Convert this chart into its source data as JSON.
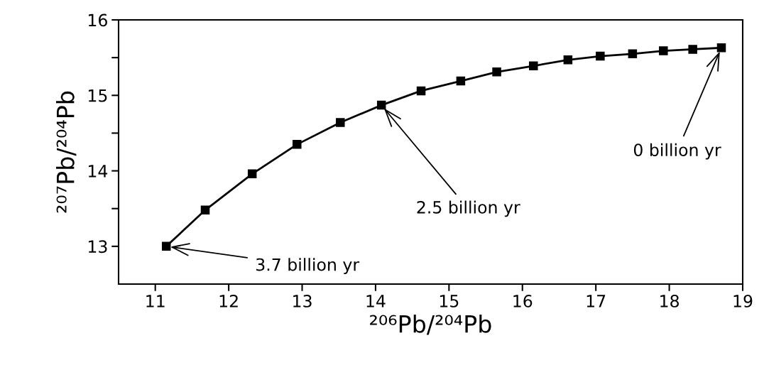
{
  "chart_data": {
    "type": "line",
    "xlabel": "²⁰⁶Pb/²⁰⁴Pb",
    "ylabel": "²⁰⁷Pb/²⁰⁴Pb",
    "x": [
      11.15,
      11.68,
      12.32,
      12.93,
      13.52,
      14.08,
      14.62,
      15.16,
      15.65,
      16.15,
      16.62,
      17.06,
      17.5,
      17.92,
      18.32,
      18.71
    ],
    "series": [
      {
        "color": "#000000",
        "values": [
          13.0,
          13.48,
          13.96,
          14.35,
          14.64,
          14.87,
          15.06,
          15.19,
          15.31,
          15.39,
          15.47,
          15.52,
          15.55,
          15.59,
          15.61,
          15.63
        ]
      }
    ],
    "xlim": [
      10.5,
      19
    ],
    "ylim": [
      12.5,
      16
    ],
    "xticks": [
      11,
      12,
      13,
      14,
      15,
      16,
      17,
      18,
      19
    ],
    "yticks": [
      13,
      {
        "value": 13.5,
        "label": null
      },
      14,
      {
        "value": 14.5,
        "label": null
      },
      15,
      {
        "value": 15.5,
        "label": null
      },
      16
    ],
    "marker": "square",
    "line_style": "solid",
    "grid": false,
    "annotations": [
      {
        "text": "3.7 billion yr",
        "x": 11.15,
        "y": 13.0
      },
      {
        "text": "2.5 billion yr",
        "x": 14.08,
        "y": 14.87
      },
      {
        "text": "0 billion yr",
        "x": 18.71,
        "y": 15.63
      }
    ]
  }
}
